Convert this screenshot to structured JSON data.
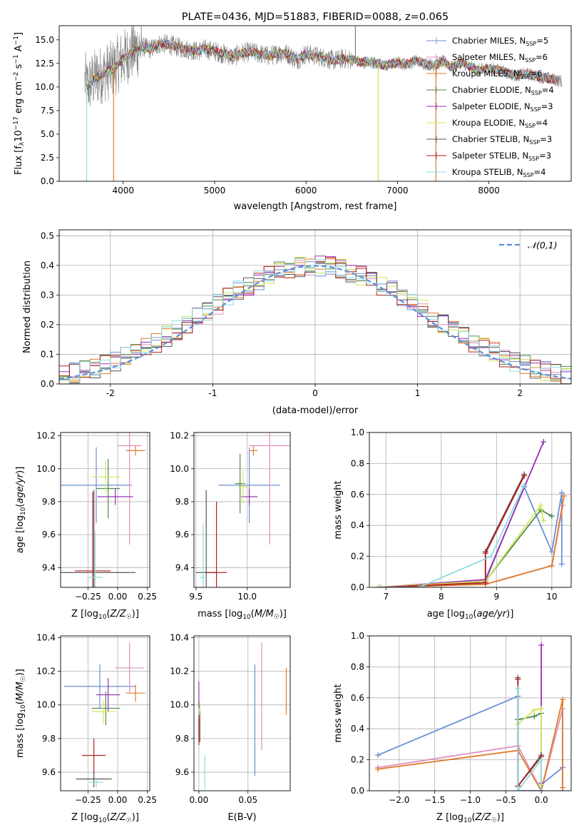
{
  "figure_title": "PLATE=0436, MJD=51883, FIBERID=0088, z=0.065",
  "colors": {
    "Chabrier MILES": "#6b8fd6",
    "Salpeter MILES": "#e08fc0",
    "Kroupa MILES": "#e07b2a",
    "Chabrier ELODIE": "#4f8a4f",
    "Salpeter ELODIE": "#9b30b0",
    "Kroupa ELODIE": "#d4e85c",
    "Chabrier STELIB": "#555555",
    "Salpeter STELIB": "#b22222",
    "Kroupa STELIB": "#8fdce0",
    "data": "#808080",
    "normal": "#5a8fd6"
  },
  "chart_data": [
    {
      "id": "spectrum",
      "type": "line",
      "title": "PLATE=0436, MJD=51883, FIBERID=0088, z=0.065",
      "xlabel": "wavelength [Angstrom, rest frame]",
      "ylabel": "Flux [f_λ 10^-17 erg cm^-2 s^-1 A^-1]",
      "xlim": [
        3300,
        8900
      ],
      "ylim": [
        0,
        16.5
      ],
      "xticks": [
        4000,
        5000,
        6000,
        7000,
        8000
      ],
      "yticks": [
        0.0,
        2.5,
        5.0,
        7.5,
        10.0,
        12.5,
        15.0
      ],
      "grid": false,
      "legend_position": "top-right",
      "legend": [
        {
          "model": "Chabrier MILES",
          "text": "Chabrier MILES, N",
          "nssp": 5
        },
        {
          "model": "Salpeter MILES",
          "text": "Salpeter MILES, N",
          "nssp": 6
        },
        {
          "model": "Kroupa MILES",
          "text": "Kroupa MILES, N",
          "nssp": 6
        },
        {
          "model": "Chabrier ELODIE",
          "text": "Chabrier ELODIE, N",
          "nssp": 4
        },
        {
          "model": "Salpeter ELODIE",
          "text": "Salpeter ELODIE, N",
          "nssp": 3
        },
        {
          "model": "Kroupa ELODIE",
          "text": "Kroupa ELODIE, N",
          "nssp": 4
        },
        {
          "model": "Chabrier STELIB",
          "text": "Chabrier STELIB, N",
          "nssp": 3
        },
        {
          "model": "Salpeter STELIB",
          "text": "Salpeter STELIB, N",
          "nssp": 3
        },
        {
          "model": "Kroupa STELIB",
          "text": "Kroupa STELIB, N",
          "nssp": 4
        }
      ],
      "legend_sub": "SSP",
      "continuum": [
        [
          3600,
          10.0
        ],
        [
          3700,
          11.0
        ],
        [
          3800,
          11.5
        ],
        [
          3900,
          12.0
        ],
        [
          4000,
          13.0
        ],
        [
          4100,
          13.8
        ],
        [
          4200,
          14.3
        ],
        [
          4300,
          14.0
        ],
        [
          4400,
          14.6
        ],
        [
          4500,
          14.5
        ],
        [
          4600,
          14.2
        ],
        [
          4700,
          14.0
        ],
        [
          4800,
          13.8
        ],
        [
          4900,
          14.0
        ],
        [
          5000,
          13.8
        ],
        [
          5100,
          13.5
        ],
        [
          5200,
          13.2
        ],
        [
          5300,
          13.6
        ],
        [
          5400,
          13.7
        ],
        [
          5500,
          13.5
        ],
        [
          5600,
          13.3
        ],
        [
          5700,
          13.6
        ],
        [
          5800,
          13.5
        ],
        [
          5900,
          12.9
        ],
        [
          6000,
          13.5
        ],
        [
          6100,
          13.3
        ],
        [
          6200,
          13.1
        ],
        [
          6300,
          12.8
        ],
        [
          6400,
          13.0
        ],
        [
          6500,
          12.9
        ],
        [
          6600,
          12.6
        ],
        [
          6700,
          12.7
        ],
        [
          6800,
          12.4
        ],
        [
          6900,
          12.3
        ],
        [
          7000,
          12.6
        ],
        [
          7100,
          12.4
        ],
        [
          7200,
          12.8
        ],
        [
          7300,
          12.5
        ],
        [
          7400,
          12.3
        ],
        [
          7500,
          12.7
        ],
        [
          7600,
          12.1
        ],
        [
          7700,
          12.6
        ],
        [
          7800,
          12.1
        ],
        [
          7900,
          11.8
        ],
        [
          8000,
          12.0
        ],
        [
          8100,
          11.8
        ],
        [
          8200,
          11.5
        ],
        [
          8300,
          11.2
        ],
        [
          8400,
          11.4
        ],
        [
          8500,
          11.2
        ],
        [
          8600,
          11.0
        ],
        [
          8700,
          10.8
        ],
        [
          8800,
          10.6
        ]
      ],
      "spikes": [
        {
          "x": 3600,
          "y": 0.0,
          "model": "Kroupa STELIB"
        },
        {
          "x": 3895,
          "y": 0.0,
          "model": "Kroupa MILES"
        },
        {
          "x": 6790,
          "y": 0.0,
          "model": "Kroupa ELODIE"
        },
        {
          "x": 7420,
          "y": 0.0,
          "model": "Kroupa MILES"
        },
        {
          "x": 6540,
          "y": 16.5,
          "model": "data"
        }
      ]
    },
    {
      "id": "residuals",
      "type": "bar",
      "xlabel": "(data-model)/error",
      "ylabel": "Normed distribution",
      "xlim": [
        -2.5,
        2.5
      ],
      "ylim": [
        0,
        0.52
      ],
      "xticks": [
        -2,
        -1,
        0,
        1,
        2
      ],
      "yticks": [
        0.0,
        0.1,
        0.2,
        0.3,
        0.4,
        0.5
      ],
      "grid": true,
      "legend_position": "top-right",
      "normal_label": "𝒩(0,1)",
      "bin_width": 0.1
    },
    {
      "id": "age_vs_Z",
      "type": "scatter",
      "xlabel": "Z [log10(Z/Z☉)]",
      "ylabel": "age [log10(age/yr)]",
      "xlim": [
        -0.48,
        0.27
      ],
      "ylim": [
        9.28,
        10.22
      ],
      "xticks": [
        -0.25,
        0.0,
        0.25
      ],
      "xticklabels": [
        "−0.25",
        "0.00",
        "0.25"
      ],
      "yticks": [
        9.4,
        9.6,
        9.8,
        10.0,
        10.2
      ],
      "grid": true,
      "points": [
        {
          "model": "Chabrier MILES",
          "x": -0.18,
          "y": 9.9,
          "xerr": 0.3,
          "yerr": 0.23
        },
        {
          "model": "Salpeter MILES",
          "x": 0.1,
          "y": 10.14,
          "xerr": 0.1,
          "yerr": 0.6
        },
        {
          "model": "Kroupa MILES",
          "x": 0.15,
          "y": 10.11,
          "xerr": 0.08,
          "yerr": 0.03
        },
        {
          "model": "Chabrier ELODIE",
          "x": -0.08,
          "y": 9.88,
          "xerr": 0.1,
          "yerr": 0.18
        },
        {
          "model": "Salpeter ELODIE",
          "x": -0.02,
          "y": 9.83,
          "xerr": 0.15,
          "yerr": 0.05
        },
        {
          "model": "Kroupa ELODIE",
          "x": -0.1,
          "y": 9.95,
          "xerr": 0.12,
          "yerr": 0.1
        },
        {
          "model": "Chabrier STELIB",
          "x": -0.2,
          "y": 9.37,
          "xerr": 0.35,
          "yerr": 0.5
        },
        {
          "model": "Salpeter STELIB",
          "x": -0.21,
          "y": 9.38,
          "xerr": 0.15,
          "yerr": 0.48
        },
        {
          "model": "Kroupa STELIB",
          "x": -0.19,
          "y": 9.34,
          "xerr": 0.06,
          "yerr": 0.28
        }
      ]
    },
    {
      "id": "age_vs_mass",
      "type": "scatter",
      "xlabel": "mass [log10(M/M☉)]",
      "xlim": [
        9.48,
        10.42
      ],
      "ylim": [
        9.28,
        10.22
      ],
      "xticks": [
        9.5,
        10.0
      ],
      "xticklabels": [
        "9.5",
        "10.0"
      ],
      "yticks": [
        9.4,
        9.6,
        9.8,
        10.0,
        10.2
      ],
      "grid": true,
      "points": [
        {
          "model": "Chabrier MILES",
          "x": 10.02,
          "y": 9.9,
          "xerr": 0.3,
          "yerr": 0.23
        },
        {
          "model": "Salpeter MILES",
          "x": 10.22,
          "y": 10.14,
          "xerr": 0.2,
          "yerr": 0.6
        },
        {
          "model": "Kroupa MILES",
          "x": 10.06,
          "y": 10.11,
          "xerr": 0.04,
          "yerr": 0.03
        },
        {
          "model": "Chabrier ELODIE",
          "x": 9.93,
          "y": 9.91,
          "xerr": 0.05,
          "yerr": 0.18
        },
        {
          "model": "Salpeter ELODIE",
          "x": 10.02,
          "y": 9.83,
          "xerr": 0.08,
          "yerr": 0.05
        },
        {
          "model": "Kroupa ELODIE",
          "x": 9.96,
          "y": 9.89,
          "xerr": 0.05,
          "yerr": 0.1
        },
        {
          "model": "Chabrier STELIB",
          "x": 9.6,
          "y": 9.37,
          "xerr": 0.1,
          "yerr": 0.5
        },
        {
          "model": "Salpeter STELIB",
          "x": 9.7,
          "y": 9.37,
          "xerr": 0.1,
          "yerr": 0.43
        },
        {
          "model": "Kroupa STELIB",
          "x": 9.57,
          "y": 9.34,
          "xerr": 0.03,
          "yerr": 0.32
        }
      ]
    },
    {
      "id": "weight_vs_age",
      "type": "line",
      "xlabel": "age [log10(age/yr)]",
      "ylabel": "mass weight",
      "xlim": [
        6.7,
        10.35
      ],
      "ylim": [
        0,
        1.0
      ],
      "xticks": [
        7,
        8,
        9,
        10
      ],
      "yticks": [
        0.0,
        0.2,
        0.4,
        0.6,
        0.8,
        1.0
      ],
      "grid": true,
      "series": [
        {
          "model": "Chabrier MILES",
          "x": [
            6.85,
            8.8,
            9.5,
            10.0,
            10.18,
            10.18
          ],
          "y": [
            0.0,
            0.04,
            0.65,
            0.23,
            0.61,
            0.15
          ]
        },
        {
          "model": "Salpeter MILES",
          "x": [
            6.85,
            8.8,
            10.0,
            10.2
          ],
          "y": [
            0.0,
            0.02,
            0.14,
            0.53
          ]
        },
        {
          "model": "Kroupa MILES",
          "x": [
            6.9,
            8.8,
            10.0,
            10.22
          ],
          "y": [
            0.0,
            0.02,
            0.14,
            0.59
          ]
        },
        {
          "model": "Chabrier ELODIE",
          "x": [
            6.9,
            8.8,
            9.8,
            10.0
          ],
          "y": [
            0.0,
            0.04,
            0.5,
            0.46
          ]
        },
        {
          "model": "Salpeter ELODIE",
          "x": [
            6.9,
            8.8,
            9.85
          ],
          "y": [
            0.0,
            0.05,
            0.94
          ]
        },
        {
          "model": "Kroupa ELODIE",
          "x": [
            6.85,
            8.8,
            9.8,
            9.85
          ],
          "y": [
            0.0,
            0.04,
            0.53,
            0.43
          ]
        },
        {
          "model": "Chabrier STELIB",
          "x": [
            6.9,
            8.8,
            8.8,
            9.5
          ],
          "y": [
            0.0,
            0.03,
            0.23,
            0.73
          ]
        },
        {
          "model": "Salpeter STELIB",
          "x": [
            6.9,
            8.8,
            8.8,
            9.5
          ],
          "y": [
            0.0,
            0.03,
            0.22,
            0.72
          ]
        },
        {
          "model": "Kroupa STELIB",
          "x": [
            6.9,
            7.6,
            8.9,
            9.5
          ],
          "y": [
            0.0,
            0.0,
            0.2,
            0.66
          ]
        }
      ]
    },
    {
      "id": "mass_vs_Z",
      "type": "scatter",
      "xlabel": "Z [log10(Z/Z☉)]",
      "ylabel": "mass [log10(M/M☉)]",
      "xlim": [
        -0.48,
        0.27
      ],
      "ylim": [
        9.49,
        10.41
      ],
      "xticks": [
        -0.25,
        0.0,
        0.25
      ],
      "xticklabels": [
        "−0.25",
        "0.00",
        "0.25"
      ],
      "yticks": [
        9.6,
        9.8,
        10.0,
        10.2,
        10.4
      ],
      "grid": true,
      "points": [
        {
          "model": "Chabrier MILES",
          "x": -0.15,
          "y": 10.11,
          "xerr": 0.3,
          "yerr": 0.13
        },
        {
          "model": "Salpeter MILES",
          "x": 0.1,
          "y": 10.22,
          "xerr": 0.12,
          "yerr": 0.15
        },
        {
          "model": "Kroupa MILES",
          "x": 0.15,
          "y": 10.07,
          "xerr": 0.08,
          "yerr": 0.05
        },
        {
          "model": "Chabrier ELODIE",
          "x": -0.1,
          "y": 9.98,
          "xerr": 0.12,
          "yerr": 0.1
        },
        {
          "model": "Salpeter ELODIE",
          "x": -0.08,
          "y": 10.06,
          "xerr": 0.1,
          "yerr": 0.1
        },
        {
          "model": "Kroupa ELODIE",
          "x": -0.12,
          "y": 9.96,
          "xerr": 0.1,
          "yerr": 0.07
        },
        {
          "model": "Chabrier STELIB",
          "x": -0.2,
          "y": 9.56,
          "xerr": 0.15,
          "yerr": 0.05
        },
        {
          "model": "Salpeter STELIB",
          "x": -0.2,
          "y": 9.7,
          "xerr": 0.1,
          "yerr": 0.1
        },
        {
          "model": "Kroupa STELIB",
          "x": -0.18,
          "y": 9.54,
          "xerr": 0.06,
          "yerr": 0.03
        }
      ]
    },
    {
      "id": "mass_vs_ebv",
      "type": "scatter",
      "xlabel": "E(B-V)",
      "xlim": [
        -0.005,
        0.093
      ],
      "ylim": [
        9.49,
        10.41
      ],
      "xticks": [
        0.0,
        0.05
      ],
      "xticklabels": [
        "0.00",
        "0.05"
      ],
      "yticks": [
        9.6,
        9.8,
        10.0,
        10.2,
        10.4
      ],
      "grid": true,
      "points": [
        {
          "model": "Chabrier MILES",
          "x": 0.057,
          "y": 9.91,
          "xerr": 0,
          "yerr": 0.33
        },
        {
          "model": "Salpeter MILES",
          "x": 0.064,
          "y": 10.05,
          "xerr": 0,
          "yerr": 0.32
        },
        {
          "model": "Kroupa MILES",
          "x": 0.089,
          "y": 10.08,
          "xerr": 0,
          "yerr": 0.14
        },
        {
          "model": "Chabrier ELODIE",
          "x": 0.001,
          "y": 9.96,
          "xerr": 0,
          "yerr": 0.04
        },
        {
          "model": "Salpeter ELODIE",
          "x": 0.0,
          "y": 10.06,
          "xerr": 0,
          "yerr": 0.08
        },
        {
          "model": "Kroupa ELODIE",
          "x": 0.001,
          "y": 9.99,
          "xerr": 0,
          "yerr": 0.03
        },
        {
          "model": "Chabrier STELIB",
          "x": 0.001,
          "y": 9.85,
          "xerr": 0,
          "yerr": 0.07
        },
        {
          "model": "Salpeter STELIB",
          "x": 0.0,
          "y": 9.85,
          "xerr": 0,
          "yerr": 0.09
        },
        {
          "model": "Kroupa STELIB",
          "x": 0.006,
          "y": 9.6,
          "xerr": 0,
          "yerr": 0.1
        }
      ]
    },
    {
      "id": "weight_vs_Z",
      "type": "line",
      "xlabel": "Z [log10(Z/Z☉)]",
      "ylabel": "mass weight",
      "xlim": [
        -2.42,
        0.42
      ],
      "ylim": [
        0,
        1.0
      ],
      "xticks": [
        -2.0,
        -1.5,
        -1.0,
        -0.5,
        0.0
      ],
      "xticklabels": [
        "−2.0",
        "−1.5",
        "−1.0",
        "−0.5",
        "0.0"
      ],
      "yticks": [
        0.0,
        0.2,
        0.4,
        0.6,
        0.8,
        1.0
      ],
      "grid": true,
      "series": [
        {
          "model": "Chabrier MILES",
          "x": [
            -2.3,
            -0.33,
            -0.33,
            0.0,
            0.0,
            0.3,
            0.3
          ],
          "y": [
            0.23,
            0.61,
            0.0,
            0.0,
            0.04,
            0.15,
            0.0
          ]
        },
        {
          "model": "Salpeter MILES",
          "x": [
            -2.3,
            -0.33,
            0.0,
            0.3,
            0.3
          ],
          "y": [
            0.15,
            0.29,
            0.0,
            0.53,
            0.0
          ]
        },
        {
          "model": "Kroupa MILES",
          "x": [
            -2.3,
            -0.33,
            0.0,
            0.3,
            0.3
          ],
          "y": [
            0.14,
            0.26,
            0.0,
            0.59,
            0.02
          ]
        },
        {
          "model": "Chabrier ELODIE",
          "x": [
            -0.33,
            -0.1,
            0.0,
            0.0
          ],
          "y": [
            0.46,
            0.48,
            0.5,
            0.04
          ]
        },
        {
          "model": "Salpeter ELODIE",
          "x": [
            0.0,
            0.0,
            0.0
          ],
          "y": [
            0.94,
            0.05,
            0.0
          ]
        },
        {
          "model": "Kroupa ELODIE",
          "x": [
            -0.33,
            -0.1,
            0.0,
            0.0
          ],
          "y": [
            0.43,
            0.52,
            0.53,
            0.04
          ]
        },
        {
          "model": "Chabrier STELIB",
          "x": [
            -0.33,
            -0.33,
            0.0
          ],
          "y": [
            0.73,
            0.03,
            0.23
          ]
        },
        {
          "model": "Salpeter STELIB",
          "x": [
            -0.33,
            -0.33,
            0.0
          ],
          "y": [
            0.72,
            0.03,
            0.22
          ]
        },
        {
          "model": "Kroupa STELIB",
          "x": [
            -0.33,
            -0.33,
            0.0,
            0.0
          ],
          "y": [
            0.66,
            0.0,
            0.2,
            0.0
          ]
        }
      ]
    }
  ]
}
